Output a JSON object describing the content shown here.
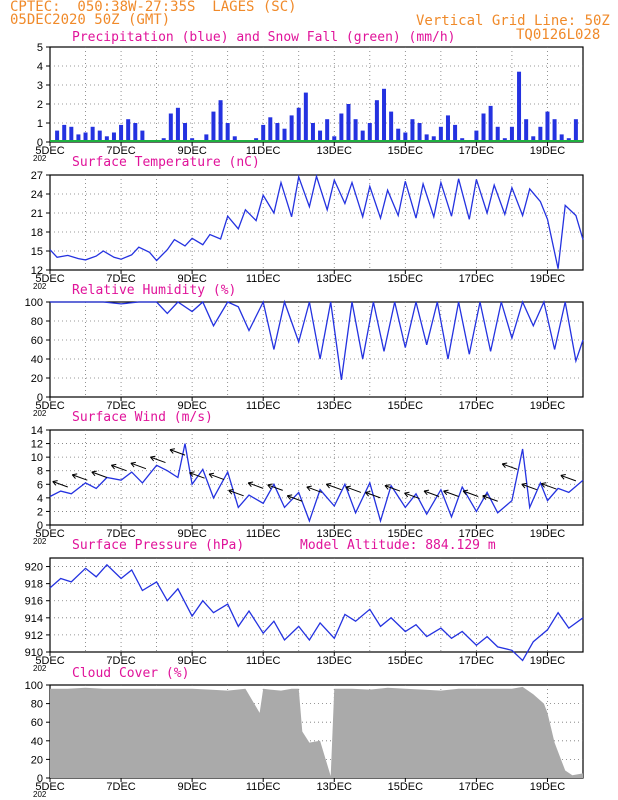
{
  "header": {
    "line1_left": "CPTEC:  050:38W-27:35S  LAGES (SC)",
    "line2_left": "05DEC2020 50Z (GMT)",
    "line1_right": "Vertical Grid Line: 50Z",
    "line2_right": "TQ0126L028"
  },
  "colors": {
    "header": "#f08a2a",
    "title": "#e0139a",
    "series": "#2432e0",
    "precip": "#2432e0",
    "snow": "#20b040",
    "cloud": "#aaaaaa",
    "wind_arrow": "#000000"
  },
  "chart_data": [
    {
      "type": "bar",
      "title": "Precipitation (blue) and Snow Fall (green) (mm/h)",
      "x_ticks": [
        "5DEC",
        "7DEC",
        "9DEC",
        "11DEC",
        "13DEC",
        "15DEC",
        "17DEC",
        "19DEC"
      ],
      "x_range_days": [
        5,
        20
      ],
      "ylim": [
        0,
        5
      ],
      "y_ticks": [
        0,
        1,
        2,
        3,
        4,
        5
      ],
      "series": [
        {
          "name": "Precipitation",
          "color": "#2432e0",
          "x": [
            5.2,
            5.4,
            5.6,
            5.8,
            6.0,
            6.2,
            6.4,
            6.6,
            6.8,
            7.0,
            7.2,
            7.4,
            7.6,
            7.8,
            8.0,
            8.2,
            8.4,
            8.6,
            8.8,
            9.0,
            9.2,
            9.4,
            9.6,
            9.8,
            10.0,
            10.2,
            10.4,
            10.6,
            10.8,
            11.0,
            11.2,
            11.4,
            11.6,
            11.8,
            12.0,
            12.2,
            12.4,
            12.6,
            12.8,
            13.0,
            13.2,
            13.4,
            13.6,
            13.8,
            14.0,
            14.2,
            14.4,
            14.6,
            14.8,
            15.0,
            15.2,
            15.4,
            15.6,
            15.8,
            16.0,
            16.2,
            16.4,
            16.6,
            16.8,
            17.0,
            17.2,
            17.4,
            17.6,
            17.8,
            18.0,
            18.2,
            18.4,
            18.6,
            18.8,
            19.0,
            19.2,
            19.4,
            19.6,
            19.8
          ],
          "values": [
            0.6,
            0.9,
            0.8,
            0.4,
            0.5,
            0.8,
            0.6,
            0.3,
            0.5,
            0.9,
            1.2,
            1.0,
            0.6,
            0.1,
            0.1,
            0.2,
            1.5,
            1.8,
            1.0,
            0.2,
            0.0,
            0.4,
            1.6,
            2.2,
            1.0,
            0.3,
            0.1,
            0.0,
            0.2,
            0.9,
            1.3,
            1.0,
            0.7,
            1.4,
            1.8,
            2.6,
            1.0,
            0.6,
            1.2,
            0.3,
            1.5,
            2.0,
            1.2,
            0.6,
            1.0,
            2.2,
            2.8,
            1.6,
            0.7,
            0.5,
            1.2,
            1.0,
            0.4,
            0.3,
            0.8,
            1.4,
            0.9,
            0.2,
            0.1,
            0.6,
            1.5,
            1.9,
            0.8,
            0.2,
            0.8,
            3.7,
            1.2,
            0.3,
            0.8,
            1.6,
            1.2,
            0.4,
            0.2,
            1.2
          ]
        },
        {
          "name": "Snow Fall",
          "color": "#20b040",
          "x": [],
          "values": []
        }
      ]
    },
    {
      "type": "line",
      "title": "Surface Temperature (nC)",
      "x_ticks": [
        "5DEC",
        "7DEC",
        "9DEC",
        "11DEC",
        "13DEC",
        "15DEC",
        "17DEC",
        "19DEC"
      ],
      "x_range_days": [
        5,
        20
      ],
      "ylim": [
        12,
        27
      ],
      "y_ticks": [
        12,
        15,
        18,
        21,
        24,
        27
      ],
      "series": [
        {
          "name": "Temperature",
          "color": "#2432e0",
          "x": [
            5.0,
            5.2,
            5.5,
            5.8,
            6.0,
            6.3,
            6.5,
            6.8,
            7.0,
            7.3,
            7.5,
            7.8,
            8.0,
            8.3,
            8.5,
            8.8,
            9.0,
            9.3,
            9.5,
            9.8,
            10.0,
            10.3,
            10.5,
            10.8,
            11.0,
            11.3,
            11.5,
            11.8,
            12.0,
            12.3,
            12.5,
            12.8,
            13.0,
            13.3,
            13.5,
            13.8,
            14.0,
            14.3,
            14.5,
            14.8,
            15.0,
            15.3,
            15.5,
            15.8,
            16.0,
            16.3,
            16.5,
            16.8,
            17.0,
            17.3,
            17.5,
            17.8,
            18.0,
            18.3,
            18.5,
            18.8,
            19.0,
            19.3,
            19.5,
            19.8,
            20.0
          ],
          "values": [
            15.2,
            14.0,
            14.3,
            13.8,
            13.6,
            14.2,
            15.0,
            14.0,
            13.7,
            14.4,
            15.6,
            14.8,
            13.5,
            15.2,
            16.8,
            15.8,
            17.0,
            16.0,
            17.6,
            16.9,
            20.5,
            18.5,
            21.5,
            19.8,
            23.8,
            21.0,
            25.8,
            20.4,
            26.7,
            22.0,
            26.8,
            21.5,
            26.2,
            22.5,
            25.8,
            20.4,
            25.2,
            20.2,
            24.6,
            20.6,
            26.0,
            20.2,
            25.6,
            20.4,
            25.8,
            20.5,
            26.4,
            20.0,
            26.3,
            21.0,
            25.4,
            20.8,
            25.0,
            20.6,
            24.8,
            22.8,
            20.0,
            12.2,
            22.2,
            20.6,
            16.8
          ]
        }
      ]
    },
    {
      "type": "line",
      "title": "Relative Humidity (%)",
      "x_ticks": [
        "5DEC",
        "7DEC",
        "9DEC",
        "11DEC",
        "13DEC",
        "15DEC",
        "17DEC",
        "19DEC"
      ],
      "x_range_days": [
        5,
        20
      ],
      "ylim": [
        0,
        100
      ],
      "y_ticks": [
        0,
        20,
        40,
        60,
        80,
        100
      ],
      "series": [
        {
          "name": "Relative Humidity",
          "color": "#2432e0",
          "x": [
            5.0,
            5.5,
            6.0,
            6.5,
            7.0,
            7.5,
            8.0,
            8.3,
            8.6,
            9.0,
            9.3,
            9.6,
            10.0,
            10.3,
            10.6,
            11.0,
            11.3,
            11.6,
            12.0,
            12.3,
            12.6,
            12.9,
            13.2,
            13.5,
            13.8,
            14.1,
            14.4,
            14.7,
            15.0,
            15.3,
            15.6,
            15.9,
            16.2,
            16.5,
            16.8,
            17.1,
            17.4,
            17.7,
            18.0,
            18.3,
            18.6,
            18.9,
            19.2,
            19.5,
            19.8,
            20.0
          ],
          "values": [
            100,
            100,
            100,
            100,
            98,
            100,
            100,
            88,
            100,
            90,
            100,
            75,
            100,
            95,
            70,
            100,
            50,
            100,
            58,
            100,
            40,
            100,
            18,
            100,
            40,
            100,
            48,
            100,
            52,
            100,
            55,
            100,
            40,
            100,
            45,
            100,
            48,
            100,
            62,
            100,
            75,
            100,
            50,
            100,
            38,
            60
          ]
        }
      ]
    },
    {
      "type": "line",
      "title": "Surface Wind (m/s)",
      "x_ticks": [
        "5DEC",
        "7DEC",
        "9DEC",
        "11DEC",
        "13DEC",
        "15DEC",
        "17DEC",
        "19DEC"
      ],
      "x_range_days": [
        5,
        20
      ],
      "ylim": [
        0,
        14
      ],
      "y_ticks": [
        0,
        2,
        4,
        6,
        8,
        10,
        12,
        14
      ],
      "series": [
        {
          "name": "Wind Speed",
          "color": "#2432e0",
          "x": [
            5.0,
            5.3,
            5.6,
            6.0,
            6.3,
            6.6,
            7.0,
            7.3,
            7.6,
            8.0,
            8.3,
            8.6,
            8.8,
            9.0,
            9.3,
            9.6,
            10.0,
            10.3,
            10.6,
            11.0,
            11.3,
            11.6,
            12.0,
            12.3,
            12.6,
            13.0,
            13.3,
            13.6,
            14.0,
            14.3,
            14.6,
            15.0,
            15.3,
            15.6,
            16.0,
            16.3,
            16.6,
            17.0,
            17.3,
            17.6,
            18.0,
            18.3,
            18.5,
            18.8,
            19.0,
            19.3,
            19.6,
            20.0
          ],
          "values": [
            4.2,
            5.0,
            4.6,
            6.2,
            5.4,
            7.0,
            6.6,
            7.8,
            6.2,
            8.8,
            8.0,
            7.0,
            12.0,
            6.0,
            8.2,
            4.0,
            7.8,
            2.6,
            4.4,
            3.2,
            6.0,
            2.6,
            4.8,
            0.6,
            5.2,
            2.8,
            6.0,
            1.8,
            6.2,
            0.6,
            5.8,
            2.6,
            4.6,
            1.6,
            5.2,
            1.2,
            5.6,
            2.0,
            4.8,
            1.8,
            3.6,
            11.2,
            2.6,
            6.2,
            3.6,
            5.4,
            4.8,
            6.6
          ]
        }
      ],
      "arrows_note": "wind direction arrows drawn along the series"
    },
    {
      "type": "line",
      "title": "Surface Pressure (hPa)",
      "annotation": "Model Altitude: 884.129 m",
      "x_ticks": [
        "5DEC",
        "7DEC",
        "9DEC",
        "11DEC",
        "13DEC",
        "15DEC",
        "17DEC",
        "19DEC"
      ],
      "x_range_days": [
        5,
        20
      ],
      "ylim": [
        910,
        921
      ],
      "y_ticks": [
        910,
        912,
        914,
        916,
        918,
        920
      ],
      "series": [
        {
          "name": "Pressure",
          "color": "#2432e0",
          "x": [
            5.0,
            5.3,
            5.6,
            6.0,
            6.3,
            6.6,
            7.0,
            7.3,
            7.6,
            8.0,
            8.3,
            8.6,
            9.0,
            9.3,
            9.6,
            10.0,
            10.3,
            10.6,
            11.0,
            11.3,
            11.6,
            12.0,
            12.3,
            12.6,
            13.0,
            13.3,
            13.6,
            14.0,
            14.3,
            14.6,
            15.0,
            15.3,
            15.6,
            16.0,
            16.3,
            16.6,
            17.0,
            17.3,
            17.6,
            18.0,
            18.3,
            18.6,
            19.0,
            19.3,
            19.6,
            20.0
          ],
          "values": [
            917.5,
            918.6,
            918.2,
            919.8,
            918.8,
            920.2,
            918.6,
            919.6,
            917.2,
            918.2,
            916.0,
            917.4,
            914.2,
            916.0,
            914.6,
            915.6,
            913.0,
            914.8,
            912.2,
            913.6,
            911.4,
            913.0,
            911.4,
            913.4,
            911.6,
            914.4,
            913.6,
            915.0,
            913.0,
            914.0,
            912.4,
            913.2,
            911.8,
            912.8,
            911.6,
            912.4,
            910.8,
            911.8,
            910.6,
            910.2,
            909.0,
            911.2,
            912.6,
            914.6,
            912.8,
            914.0
          ]
        }
      ]
    },
    {
      "type": "area",
      "title": "Cloud Cover (%)",
      "x_ticks": [
        "5DEC",
        "7DEC",
        "9DEC",
        "11DEC",
        "13DEC",
        "15DEC",
        "17DEC",
        "19DEC"
      ],
      "x_range_days": [
        5,
        20
      ],
      "ylim": [
        0,
        100
      ],
      "y_ticks": [
        0,
        20,
        40,
        60,
        80,
        100
      ],
      "series": [
        {
          "name": "Cloud Cover",
          "color": "#aaaaaa",
          "x": [
            5.0,
            5.5,
            6.0,
            6.5,
            7.0,
            7.5,
            8.0,
            8.5,
            9.0,
            9.5,
            10.0,
            10.5,
            10.9,
            11.0,
            11.2,
            11.5,
            11.8,
            12.0,
            12.1,
            12.3,
            12.6,
            12.9,
            13.0,
            13.1,
            13.5,
            14.0,
            14.5,
            15.0,
            15.5,
            16.0,
            16.5,
            17.0,
            17.5,
            18.0,
            18.3,
            18.6,
            18.9,
            19.0,
            19.2,
            19.5,
            19.7,
            20.0
          ],
          "values": [
            96,
            96,
            97,
            96,
            96,
            96,
            96,
            96,
            96,
            95,
            94,
            96,
            70,
            96,
            95,
            94,
            96,
            96,
            50,
            38,
            40,
            2,
            96,
            96,
            96,
            95,
            97,
            96,
            95,
            94,
            96,
            96,
            96,
            96,
            98,
            90,
            80,
            70,
            38,
            8,
            3,
            5
          ]
        }
      ]
    }
  ],
  "panel_labels": {
    "truncated_year": "202"
  }
}
